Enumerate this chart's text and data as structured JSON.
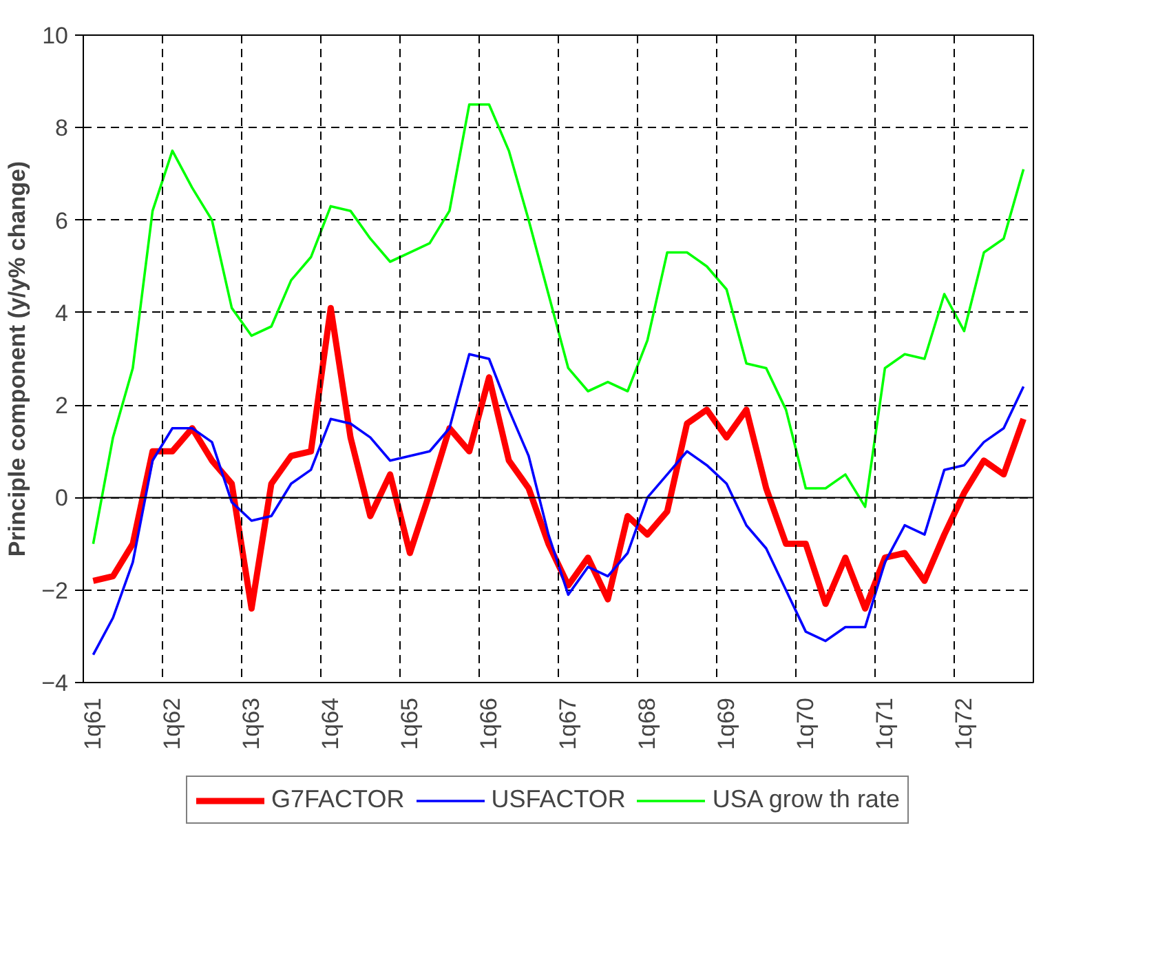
{
  "chart_data": {
    "type": "line",
    "ylabel": "Principle component (y/y% change)",
    "categories": [
      "1q61",
      null,
      null,
      null,
      "1q62",
      null,
      null,
      null,
      "1q63",
      null,
      null,
      null,
      "1q64",
      null,
      null,
      null,
      "1q65",
      null,
      null,
      null,
      "1q66",
      null,
      null,
      null,
      "1q67",
      null,
      null,
      null,
      "1q68",
      null,
      null,
      null,
      "1q69",
      null,
      null,
      null,
      "1q70",
      null,
      null,
      null,
      "1q71",
      null,
      null,
      null,
      "1q72",
      null,
      null,
      null
    ],
    "series": [
      {
        "name": "G7FACTOR",
        "color": "#ff0000",
        "values": [
          -1.8,
          -1.7,
          -1.0,
          1.0,
          1.0,
          1.5,
          0.8,
          0.3,
          -2.4,
          0.3,
          0.9,
          1.0,
          4.1,
          1.3,
          -0.4,
          0.5,
          -1.2,
          0.1,
          1.5,
          1.0,
          2.6,
          0.8,
          0.2,
          -1.0,
          -1.9,
          -1.3,
          -2.2,
          -0.4,
          -0.8,
          -0.3,
          1.6,
          1.9,
          1.3,
          1.9,
          0.2,
          -1.0,
          -1.0,
          -2.3,
          -1.3,
          -2.4,
          -1.3,
          -1.2,
          -1.8,
          -0.8,
          0.1,
          0.8,
          0.5,
          1.7
        ]
      },
      {
        "name": "USFACTOR",
        "color": "#0000ff",
        "values": [
          -3.4,
          -2.6,
          -1.4,
          0.8,
          1.5,
          1.5,
          1.2,
          -0.1,
          -0.5,
          -0.4,
          0.3,
          0.6,
          1.7,
          1.6,
          1.3,
          0.8,
          0.9,
          1.0,
          1.5,
          3.1,
          3.0,
          1.9,
          0.9,
          -0.8,
          -2.1,
          -1.5,
          -1.7,
          -1.2,
          0.0,
          0.5,
          1.0,
          0.7,
          0.3,
          -0.6,
          -1.1,
          -2.0,
          -2.9,
          -3.1,
          -2.8,
          -2.8,
          -1.4,
          -0.6,
          -0.8,
          0.6,
          0.7,
          1.2,
          1.5,
          2.4
        ]
      },
      {
        "name": "USA grow th rate",
        "color": "#00ff00",
        "values": [
          -1.0,
          1.3,
          2.8,
          6.2,
          7.5,
          6.7,
          6.0,
          4.1,
          3.5,
          3.7,
          4.7,
          5.2,
          6.3,
          6.2,
          5.6,
          5.1,
          5.3,
          5.5,
          6.2,
          8.5,
          8.5,
          7.5,
          6.0,
          4.4,
          2.8,
          2.3,
          2.5,
          2.3,
          3.4,
          5.3,
          5.3,
          5.0,
          4.5,
          2.9,
          2.8,
          1.9,
          0.2,
          0.2,
          0.5,
          -0.2,
          2.8,
          3.1,
          3.0,
          4.4,
          3.6,
          5.3,
          5.6,
          7.1
        ]
      }
    ],
    "ylim": [
      -4,
      10
    ],
    "yticks": [
      -4,
      -2,
      0,
      2,
      4,
      6,
      8,
      10
    ],
    "grid": true,
    "legend": "bottom",
    "line_style": "solid"
  }
}
